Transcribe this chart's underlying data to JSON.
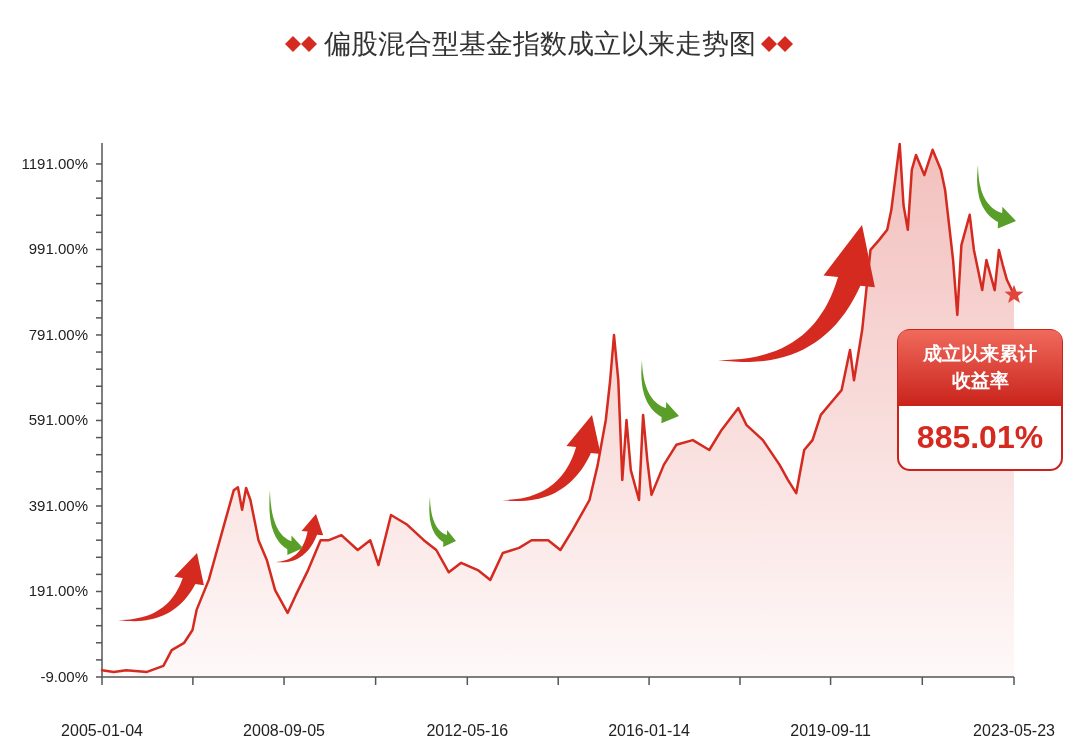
{
  "chart_data": {
    "type": "area",
    "title": "偏股混合型基金指数成立以来走势图",
    "x": [
      "2005-01-04",
      "2005-04",
      "2005-07",
      "2005-12",
      "2006-04",
      "2006-06",
      "2006-09",
      "2006-11",
      "2006-12",
      "2007-03",
      "2007-05",
      "2007-07",
      "2007-09",
      "2007-10",
      "2007-11",
      "2007-12",
      "2008-01",
      "2008-03",
      "2008-05",
      "2008-07",
      "2008-10",
      "2008-12",
      "2009-03",
      "2009-06",
      "2009-08",
      "2009-11",
      "2010-03",
      "2010-06",
      "2010-08",
      "2010-11",
      "2011-03",
      "2011-07",
      "2011-10",
      "2012-01",
      "2012-04",
      "2012-08",
      "2012-11",
      "2013-02",
      "2013-06",
      "2013-09",
      "2014-01",
      "2014-04",
      "2014-07",
      "2014-11",
      "2015-01",
      "2015-03",
      "2015-04",
      "2015-05",
      "2015-06",
      "2015-07",
      "2015-08",
      "2015-09",
      "2015-11",
      "2015-12",
      "2016-01",
      "2016-02",
      "2016-05",
      "2016-08",
      "2016-12",
      "2017-04",
      "2017-07",
      "2017-11",
      "2018-01",
      "2018-05",
      "2018-09",
      "2018-11",
      "2019-01",
      "2019-03",
      "2019-05",
      "2019-07",
      "2019-10",
      "2019-12",
      "2020-02",
      "2020-03",
      "2020-05",
      "2020-07",
      "2020-09",
      "2020-11",
      "2020-12",
      "2021-02",
      "2021-03",
      "2021-04",
      "2021-05",
      "2021-06",
      "2021-08",
      "2021-10",
      "2021-12",
      "2022-01",
      "2022-03",
      "2022-04",
      "2022-05",
      "2022-07",
      "2022-08",
      "2022-10",
      "2022-11",
      "2023-01",
      "2023-02",
      "2023-03",
      "2023-04",
      "2023-05-23"
    ],
    "series": [
      {
        "color": "#d42a20",
        "values": [
          7,
          3,
          7,
          3,
          17,
          54,
          71,
          101,
          148,
          218,
          288,
          358,
          428,
          435,
          382,
          433,
          405,
          311,
          265,
          194,
          141,
          183,
          241,
          311,
          311,
          323,
          288,
          311,
          253,
          370,
          347,
          311,
          288,
          236,
          258,
          241,
          218,
          281,
          293,
          311,
          311,
          288,
          335,
          405,
          487,
          592,
          681,
          791,
          685,
          452,
          592,
          475,
          405,
          604,
          498,
          417,
          487,
          534,
          545,
          522,
          569,
          620,
          580,
          545,
          487,
          452,
          421,
          522,
          545,
          604,
          639,
          662,
          756,
          685,
          803,
          990,
          1013,
          1037,
          1083,
          1238,
          1095,
          1037,
          1177,
          1212,
          1165,
          1224,
          1177,
          1130,
          966,
          838,
          1001,
          1072,
          990,
          896,
          966,
          896,
          990,
          955,
          920,
          885
        ]
      }
    ],
    "xlim": [
      "2005-01-04",
      "2023-05-23"
    ],
    "xticks": [
      {
        "value": "2005-01-04",
        "label": "2005-01-04"
      },
      {
        "value": "2006-11-04",
        "label": null
      },
      {
        "value": "2008-09-05",
        "label": "2008-09-05"
      },
      {
        "value": "2010-07-11",
        "label": null
      },
      {
        "value": "2012-05-16",
        "label": "2012-05-16"
      },
      {
        "value": "2014-03-16",
        "label": null
      },
      {
        "value": "2016-01-14",
        "label": "2016-01-14"
      },
      {
        "value": "2017-11-13",
        "label": null
      },
      {
        "value": "2019-09-11",
        "label": "2019-09-11"
      },
      {
        "value": "2021-07-17",
        "label": null
      },
      {
        "value": "2023-05-23",
        "label": "2023-05-23"
      }
    ],
    "ylim": [
      -9,
      1240
    ],
    "yticks": [
      {
        "value": -9,
        "label": "-9.00%"
      },
      {
        "value": 31,
        "label": null
      },
      {
        "value": 71,
        "label": null
      },
      {
        "value": 111,
        "label": null
      },
      {
        "value": 151,
        "label": null
      },
      {
        "value": 191,
        "label": "191.00%"
      },
      {
        "value": 231,
        "label": null
      },
      {
        "value": 271,
        "label": null
      },
      {
        "value": 311,
        "label": null
      },
      {
        "value": 351,
        "label": null
      },
      {
        "value": 391,
        "label": "391.00%"
      },
      {
        "value": 431,
        "label": null
      },
      {
        "value": 471,
        "label": null
      },
      {
        "value": 511,
        "label": null
      },
      {
        "value": 551,
        "label": null
      },
      {
        "value": 591,
        "label": "591.00%"
      },
      {
        "value": 631,
        "label": null
      },
      {
        "value": 671,
        "label": null
      },
      {
        "value": 711,
        "label": null
      },
      {
        "value": 751,
        "label": null
      },
      {
        "value": 791,
        "label": "791.00%"
      },
      {
        "value": 831,
        "label": null
      },
      {
        "value": 871,
        "label": null
      },
      {
        "value": 911,
        "label": null
      },
      {
        "value": 951,
        "label": null
      },
      {
        "value": 991,
        "label": "991.00%"
      },
      {
        "value": 1031,
        "label": null
      },
      {
        "value": 1071,
        "label": null
      },
      {
        "value": 1111,
        "label": null
      },
      {
        "value": 1151,
        "label": null
      },
      {
        "value": 1191,
        "label": "1191.00%"
      }
    ],
    "annotations": [
      "成立以来累计收益率",
      "885.01%"
    ]
  }
}
